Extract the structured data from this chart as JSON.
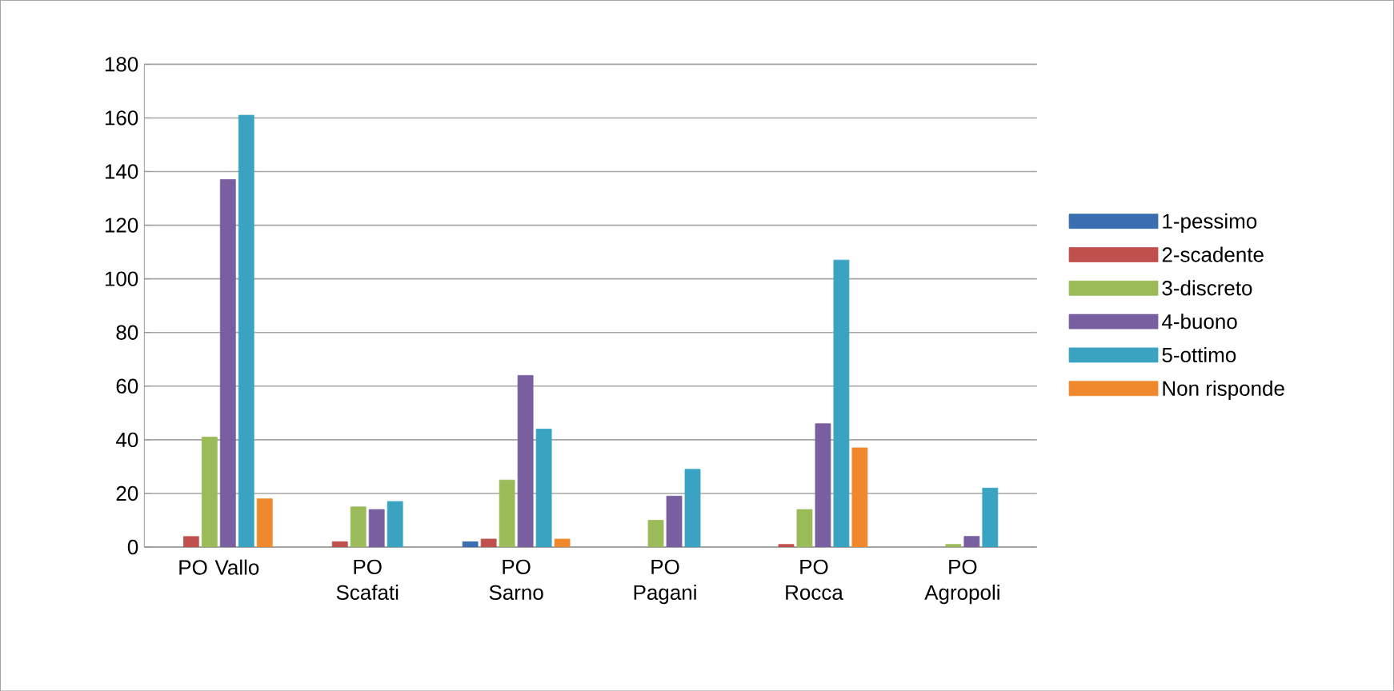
{
  "chart_data": {
    "type": "bar",
    "categories": [
      "PO Vallo",
      "PO Scafati",
      "PO Sarno",
      "PO Pagani",
      "PO Rocca",
      "PO Agropoli"
    ],
    "series": [
      {
        "name": "1-pessimo",
        "color": "#3a6eb0",
        "values": [
          null,
          null,
          2,
          null,
          null,
          null
        ]
      },
      {
        "name": "2-scadente",
        "color": "#c0504d",
        "values": [
          4,
          2,
          3,
          null,
          1,
          null
        ]
      },
      {
        "name": "3-discreto",
        "color": "#9bbb59",
        "values": [
          41,
          15,
          25,
          10,
          14,
          1
        ]
      },
      {
        "name": "4-buono",
        "color": "#7a5fa0",
        "values": [
          137,
          14,
          64,
          19,
          46,
          4
        ]
      },
      {
        "name": "5-ottimo",
        "color": "#3aa3c2",
        "values": [
          161,
          17,
          44,
          29,
          107,
          22
        ]
      },
      {
        "name": "Non risponde",
        "color": "#f0892e",
        "values": [
          18,
          null,
          3,
          null,
          37,
          null
        ]
      }
    ],
    "ylim": [
      0,
      180
    ],
    "yticks": [
      0,
      20,
      40,
      60,
      80,
      100,
      120,
      140,
      160,
      180
    ],
    "grid": "y",
    "legend": "right"
  }
}
